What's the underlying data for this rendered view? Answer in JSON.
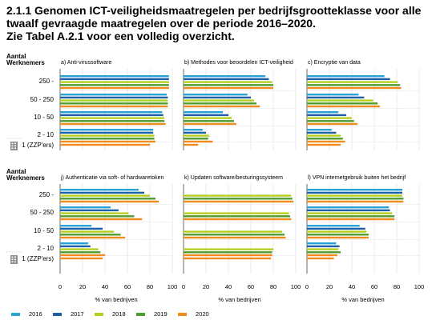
{
  "title": {
    "line1": "2.1.1 Genomen ICT-veiligheidsmaatregelen per bedrijfsgrootteklasse voor alle",
    "line2": "twaalf gevraagde maatregelen over de periode 2016–2020.",
    "line3": "Zie Tabel A.2.1 voor een volledig overzicht."
  },
  "chart_data": {
    "type": "bar",
    "orientation": "horizontal",
    "row_header": [
      "Aantal",
      "Werknemers"
    ],
    "categories": [
      "250 -",
      "50 - 250",
      "10 - 50",
      "2 - 10",
      "1 (ZZP'ers)"
    ],
    "series_names": [
      "2016",
      "2017",
      "2018",
      "2019",
      "2020"
    ],
    "series_colors": [
      "#29a3d6",
      "#1f5fa8",
      "#b5cf1f",
      "#4f9d2f",
      "#f08c1e"
    ],
    "xlim": [
      0,
      100
    ],
    "xticks": [
      0,
      20,
      40,
      60,
      80,
      100
    ],
    "xlabel": "% van bedrijven",
    "grid": true,
    "legend_position": "bottom",
    "panels": [
      {
        "title": "a) Anti-virussoftware",
        "values": [
          [
            97,
            97,
            97,
            97,
            97
          ],
          [
            95,
            96,
            96,
            96,
            96
          ],
          [
            91,
            92,
            93,
            93,
            94
          ],
          [
            83,
            83,
            84,
            84,
            85
          ],
          [
            null,
            null,
            null,
            null,
            80
          ]
        ]
      },
      {
        "title": "b) Methodes voor beoordelen ICT-veiligheid",
        "values": [
          [
            73,
            76,
            79,
            80,
            80
          ],
          [
            57,
            60,
            63,
            65,
            68
          ],
          [
            35,
            40,
            43,
            45,
            47
          ],
          [
            17,
            20,
            23,
            22,
            26
          ],
          [
            null,
            null,
            null,
            null,
            13
          ]
        ]
      },
      {
        "title": "c) Encryptie van data",
        "values": [
          [
            69,
            74,
            81,
            83,
            84
          ],
          [
            46,
            51,
            59,
            63,
            65
          ],
          [
            28,
            35,
            40,
            42,
            45
          ],
          [
            22,
            26,
            30,
            32,
            34
          ],
          [
            null,
            null,
            null,
            null,
            30
          ]
        ]
      },
      {
        "title": "j) Authenticatie via soft- of hardwaretoken",
        "values": [
          [
            70,
            75,
            80,
            85,
            88
          ],
          [
            45,
            52,
            61,
            66,
            73
          ],
          [
            28,
            38,
            48,
            54,
            58
          ],
          [
            25,
            27,
            34,
            36,
            40
          ],
          [
            null,
            null,
            null,
            null,
            38
          ]
        ]
      },
      {
        "title": "k) Updaten software/besturingssysteem",
        "values": [
          [
            null,
            null,
            96,
            97,
            98
          ],
          [
            null,
            null,
            94,
            95,
            96
          ],
          [
            null,
            null,
            88,
            90,
            91
          ],
          [
            null,
            null,
            80,
            79,
            79
          ],
          [
            null,
            null,
            null,
            null,
            78
          ]
        ]
      },
      {
        "title": "l) VPN internetgebruik buiten het bedrijf",
        "values": [
          [
            85,
            85,
            85,
            86,
            86
          ],
          [
            73,
            74,
            76,
            78,
            78
          ],
          [
            47,
            52,
            53,
            55,
            55
          ],
          [
            26,
            29,
            28,
            30,
            27
          ],
          [
            null,
            null,
            null,
            null,
            24
          ]
        ]
      }
    ]
  }
}
